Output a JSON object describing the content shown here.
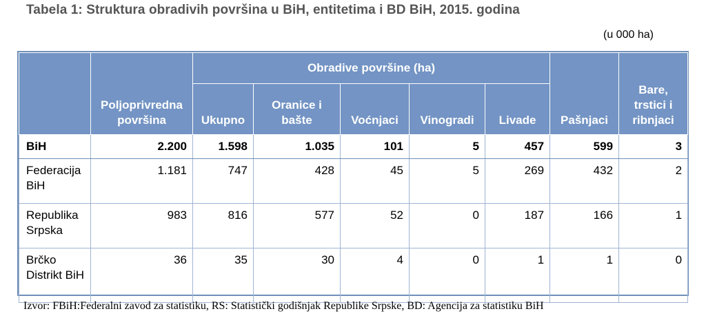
{
  "title": "Tabela 1: Struktura obradivih površina u BiH, entitetima i BD BiH, 2015. godina",
  "unit": "(u 000 ha)",
  "table": {
    "headers": {
      "poljoprivredna": "Poljoprivredna površina",
      "obradive_group": "Obradive površine (ha)",
      "ukupno": "Ukupno",
      "oranice": "Oranice i bašte",
      "vocnjaci": "Voćnjaci",
      "vinogradi": "Vinogradi",
      "livade": "Livade",
      "pasnjaci": "Pašnjaci",
      "bare": "Bare, trstici i ribnjaci"
    },
    "rows": [
      {
        "name": "BiH",
        "values": [
          "2.200",
          "1.598",
          "1.035",
          "101",
          "5",
          "457",
          "599",
          "3"
        ]
      },
      {
        "name": "Federacija BiH",
        "values": [
          "1.181",
          "747",
          "428",
          "45",
          "5",
          "269",
          "432",
          "2"
        ]
      },
      {
        "name": "Republika Srpska",
        "values": [
          "983",
          "816",
          "577",
          "52",
          "0",
          "187",
          "166",
          "1"
        ]
      },
      {
        "name": "Brčko Distrikt BiH",
        "values": [
          "36",
          "35",
          "30",
          "4",
          "0",
          "1",
          "1",
          "0"
        ]
      }
    ]
  },
  "source": "Izvor: FBiH:Federalni zavod za statistiku, RS: Statistički godišnjak Republike Srpske, BD: Agencija za statistiku BiH"
}
